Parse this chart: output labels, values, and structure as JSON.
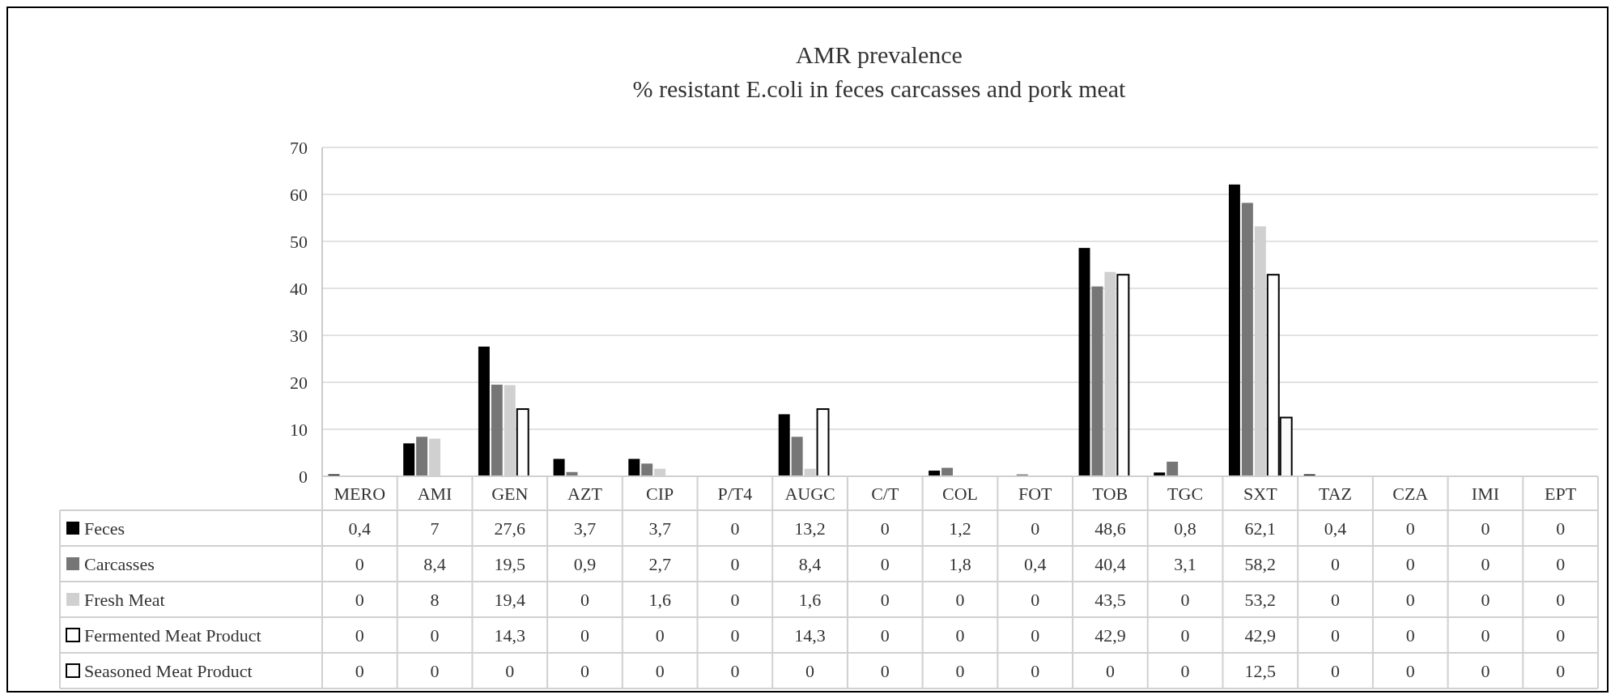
{
  "chart_data": {
    "type": "bar",
    "title": "AMR prevalence",
    "subtitle": "% resistant E.coli in feces carcasses and pork meat",
    "categories": [
      "MERO",
      "AMI",
      "GEN",
      "AZT",
      "CIP",
      "P/T4",
      "AUGC",
      "C/T",
      "COL",
      "FOT",
      "TOB",
      "TGC",
      "SXT",
      "TAZ",
      "CZA",
      "IMI",
      "EPT"
    ],
    "series": [
      {
        "name": "Feces",
        "color": "#000000",
        "values": [
          0.4,
          7,
          27.6,
          3.7,
          3.7,
          0,
          13.2,
          0,
          1.2,
          0,
          48.6,
          0.8,
          62.1,
          0.4,
          0,
          0,
          0
        ],
        "value_labels": [
          "0,4",
          "7",
          "27,6",
          "3,7",
          "3,7",
          "0",
          "13,2",
          "0",
          "1,2",
          "0",
          "48,6",
          "0,8",
          "62,1",
          "0,4",
          "0",
          "0",
          "0"
        ]
      },
      {
        "name": "Carcasses",
        "color": "#767676",
        "values": [
          0,
          8.4,
          19.5,
          0.9,
          2.7,
          0,
          8.4,
          0,
          1.8,
          0.4,
          40.4,
          3.1,
          58.2,
          0,
          0,
          0,
          0
        ],
        "value_labels": [
          "0",
          "8,4",
          "19,5",
          "0,9",
          "2,7",
          "0",
          "8,4",
          "0",
          "1,8",
          "0,4",
          "40,4",
          "3,1",
          "58,2",
          "0",
          "0",
          "0",
          "0"
        ]
      },
      {
        "name": "Fresh Meat",
        "color": "#d0d0d0",
        "values": [
          0,
          8,
          19.4,
          0,
          1.6,
          0,
          1.6,
          0,
          0,
          0,
          43.5,
          0,
          53.2,
          0,
          0,
          0,
          0
        ],
        "value_labels": [
          "0",
          "8",
          "19,4",
          "0",
          "1,6",
          "0",
          "1,6",
          "0",
          "0",
          "0",
          "43,5",
          "0",
          "53,2",
          "0",
          "0",
          "0",
          "0"
        ]
      },
      {
        "name": "Fermented Meat Product",
        "color": "#ffffff",
        "values": [
          0,
          0,
          14.3,
          0,
          0,
          0,
          14.3,
          0,
          0,
          0,
          42.9,
          0,
          42.9,
          0,
          0,
          0,
          0
        ],
        "value_labels": [
          "0",
          "0",
          "14,3",
          "0",
          "0",
          "0",
          "14,3",
          "0",
          "0",
          "0",
          "42,9",
          "0",
          "42,9",
          "0",
          "0",
          "0",
          "0"
        ]
      },
      {
        "name": "Seasoned Meat Product",
        "color": "#fafafa",
        "values": [
          0,
          0,
          0,
          0,
          0,
          0,
          0,
          0,
          0,
          0,
          0,
          0,
          12.5,
          0,
          0,
          0,
          0
        ],
        "value_labels": [
          "0",
          "0",
          "0",
          "0",
          "0",
          "0",
          "0",
          "0",
          "0",
          "0",
          "0",
          "0",
          "12,5",
          "0",
          "0",
          "0",
          "0"
        ]
      }
    ],
    "ylim": [
      0,
      70
    ],
    "yticks": [
      0,
      10,
      20,
      30,
      40,
      50,
      60,
      70
    ],
    "grid": "y",
    "legend": "bottom"
  }
}
